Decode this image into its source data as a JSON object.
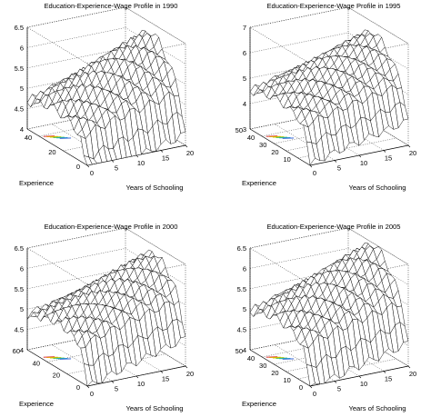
{
  "chart_data": [
    {
      "type": "surface",
      "title": "Education-Experience-Wage Profile in 1990",
      "xlabel": "Years of Schooling",
      "ylabel": "Experience",
      "zlabel": "",
      "xlim": [
        0,
        20
      ],
      "ylim": [
        0,
        50
      ],
      "zlim": [
        4,
        6.5
      ],
      "xticks": [
        "0",
        "5",
        "10",
        "15",
        "20"
      ],
      "yticks": [
        "0",
        "20",
        "40"
      ],
      "zticks": [
        "4",
        "4.5",
        "5",
        "5.5",
        "6",
        "6.5"
      ],
      "grid": true,
      "surface": {
        "base": 4.0,
        "peak": 6.25,
        "peak_schooling": 17,
        "peak_experience": 28
      }
    },
    {
      "type": "surface",
      "title": "Education-Experience-Wage Profile in 1995",
      "xlabel": "Years of Schooling",
      "ylabel": "Experience",
      "zlabel": "",
      "xlim": [
        0,
        20
      ],
      "ylim": [
        0,
        50
      ],
      "zlim": [
        3,
        7
      ],
      "xticks": [
        "0",
        "5",
        "10",
        "15",
        "20"
      ],
      "yticks": [
        "10",
        "20",
        "30",
        "40",
        "50"
      ],
      "zticks": [
        "3",
        "4",
        "5",
        "6",
        "7"
      ],
      "grid": true,
      "surface": {
        "base": 3.6,
        "peak": 6.6,
        "peak_schooling": 17,
        "peak_experience": 28
      }
    },
    {
      "type": "surface",
      "title": "Education-Experience-Wage Profile in 2000",
      "xlabel": "Years of Schooling",
      "ylabel": "Experience",
      "zlabel": "",
      "xlim": [
        0,
        20
      ],
      "ylim": [
        0,
        60
      ],
      "zlim": [
        4,
        6.5
      ],
      "xticks": [
        "0",
        "5",
        "10",
        "15",
        "20"
      ],
      "yticks": [
        "0",
        "20",
        "40",
        "60"
      ],
      "zticks": [
        "4",
        "4.5",
        "5",
        "5.5",
        "6",
        "6.5"
      ],
      "grid": true,
      "surface": {
        "base": 4.3,
        "peak": 6.3,
        "peak_schooling": 17,
        "peak_experience": 30
      }
    },
    {
      "type": "surface",
      "title": "Education-Experience-Wage Profile in 2005",
      "xlabel": "Years of Schooling",
      "ylabel": "Experience",
      "zlabel": "",
      "xlim": [
        0,
        20
      ],
      "ylim": [
        0,
        50
      ],
      "zlim": [
        4,
        6.5
      ],
      "xticks": [
        "0",
        "5",
        "10",
        "15",
        "20"
      ],
      "yticks": [
        "0",
        "10",
        "20",
        "30",
        "40",
        "50"
      ],
      "zticks": [
        "4",
        "4.5",
        "5",
        "5.5",
        "6",
        "6.5"
      ],
      "grid": true,
      "surface": {
        "base": 4.3,
        "peak": 6.45,
        "peak_schooling": 17,
        "peak_experience": 28
      }
    }
  ]
}
